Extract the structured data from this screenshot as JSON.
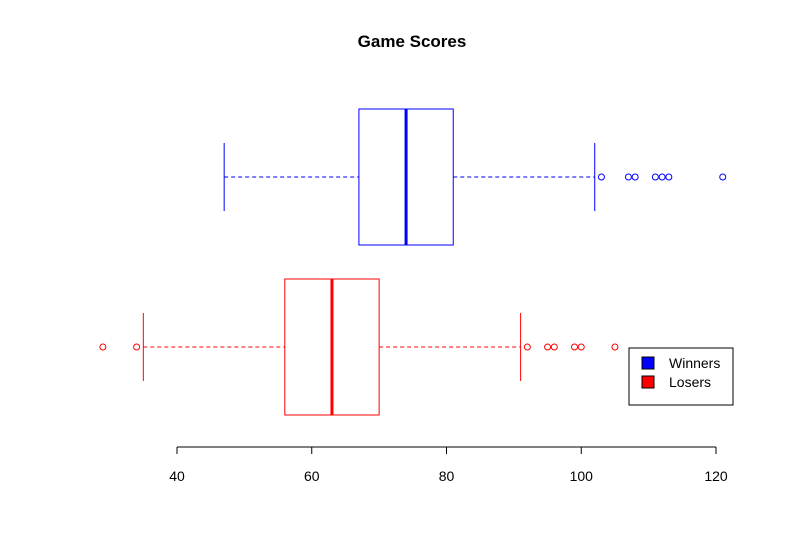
{
  "chart_data": {
    "type": "boxplot",
    "orientation": "horizontal",
    "title": "Game Scores",
    "xlabel": "",
    "ylabel": "",
    "xlim": [
      40,
      120
    ],
    "ticks": [
      40,
      60,
      80,
      100,
      120
    ],
    "tick_labels": [
      "40",
      "60",
      "80",
      "100",
      "120"
    ],
    "grid": false,
    "legend_position": "bottom-right",
    "series": [
      {
        "name": "Winners",
        "color": "#0000ff",
        "whisker_low": 47,
        "q1": 67,
        "median": 74,
        "q3": 81,
        "whisker_high": 102,
        "outliers": [
          103,
          107,
          108,
          111,
          112,
          113,
          121
        ]
      },
      {
        "name": "Losers",
        "color": "#ff0000",
        "whisker_low": 35,
        "q1": 56,
        "median": 63,
        "q3": 70,
        "whisker_high": 91,
        "outliers": [
          29,
          34,
          92,
          95,
          96,
          99,
          100,
          105
        ]
      }
    ]
  }
}
